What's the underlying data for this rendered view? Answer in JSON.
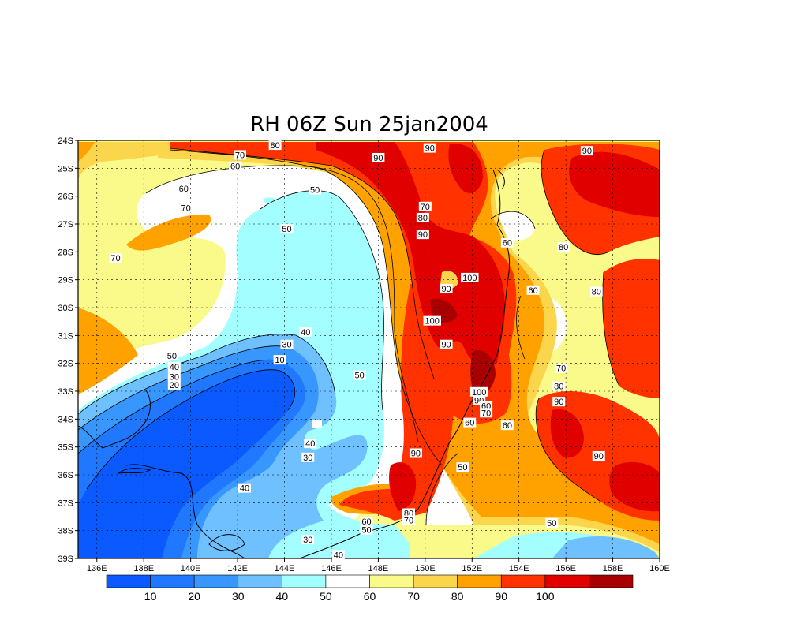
{
  "title": "RH 06Z Sun 25jan2004",
  "lat_labels": [
    "24S",
    "25S",
    "26S",
    "27S",
    "28S",
    "29S",
    "30S",
    "31S",
    "32S",
    "33S",
    "34S",
    "35S",
    "36S",
    "37S",
    "38S",
    "39S"
  ],
  "lon_labels": [
    "136E",
    "138E",
    "140E",
    "142E",
    "144E",
    "146E",
    "148E",
    "150E",
    "152E",
    "154E",
    "156E",
    "158E",
    "160E"
  ],
  "colorbar": {
    "bins": [
      "#0a5aff",
      "#1f78ff",
      "#3797ff",
      "#6ec0ff",
      "#a3ffff",
      "#ffffff",
      "#fafa8a",
      "#fbd54b",
      "#ffa200",
      "#ff3200",
      "#e10000",
      "#a80000"
    ],
    "labels": [
      "10",
      "20",
      "30",
      "40",
      "50",
      "60",
      "70",
      "80",
      "90",
      "100"
    ]
  },
  "contour_labels": [
    {
      "text": "80",
      "lon": 143.6,
      "lat": 24.2
    },
    {
      "text": "70",
      "lon": 142.1,
      "lat": 24.55
    },
    {
      "text": "60",
      "lon": 141.9,
      "lat": 24.95
    },
    {
      "text": "90",
      "lon": 148.0,
      "lat": 24.65
    },
    {
      "text": "90",
      "lon": 150.2,
      "lat": 24.3
    },
    {
      "text": "90",
      "lon": 156.9,
      "lat": 24.4
    },
    {
      "text": "60",
      "lon": 139.7,
      "lat": 25.75
    },
    {
      "text": "50",
      "lon": 145.3,
      "lat": 25.8
    },
    {
      "text": "70",
      "lon": 139.8,
      "lat": 26.45
    },
    {
      "text": "70",
      "lon": 150.0,
      "lat": 26.4
    },
    {
      "text": "80",
      "lon": 149.9,
      "lat": 26.8
    },
    {
      "text": "50",
      "lon": 144.1,
      "lat": 27.2
    },
    {
      "text": "90",
      "lon": 149.9,
      "lat": 27.4
    },
    {
      "text": "60",
      "lon": 153.5,
      "lat": 27.7
    },
    {
      "text": "80",
      "lon": 155.9,
      "lat": 27.85
    },
    {
      "text": "70",
      "lon": 136.8,
      "lat": 28.25
    },
    {
      "text": "100",
      "lon": 151.9,
      "lat": 28.95
    },
    {
      "text": "90",
      "lon": 150.9,
      "lat": 29.35
    },
    {
      "text": "60",
      "lon": 154.6,
      "lat": 29.4
    },
    {
      "text": "80",
      "lon": 157.3,
      "lat": 29.45
    },
    {
      "text": "100",
      "lon": 150.3,
      "lat": 30.5
    },
    {
      "text": "40",
      "lon": 144.9,
      "lat": 30.9
    },
    {
      "text": "30",
      "lon": 144.1,
      "lat": 31.35
    },
    {
      "text": "90",
      "lon": 150.9,
      "lat": 31.35
    },
    {
      "text": "50",
      "lon": 139.2,
      "lat": 31.75
    },
    {
      "text": "10",
      "lon": 143.8,
      "lat": 31.9
    },
    {
      "text": "40",
      "lon": 139.3,
      "lat": 32.15
    },
    {
      "text": "70",
      "lon": 155.8,
      "lat": 32.2
    },
    {
      "text": "50",
      "lon": 147.2,
      "lat": 32.45
    },
    {
      "text": "30",
      "lon": 139.3,
      "lat": 32.5
    },
    {
      "text": "20",
      "lon": 139.3,
      "lat": 32.8
    },
    {
      "text": "80",
      "lon": 155.7,
      "lat": 32.85
    },
    {
      "text": "100",
      "lon": 152.3,
      "lat": 33.05
    },
    {
      "text": "90",
      "lon": 152.3,
      "lat": 33.35
    },
    {
      "text": "90",
      "lon": 155.7,
      "lat": 33.4
    },
    {
      "text": "60",
      "lon": 152.6,
      "lat": 33.55
    },
    {
      "text": "70",
      "lon": 152.6,
      "lat": 33.8
    },
    {
      "text": "60",
      "lon": 151.9,
      "lat": 34.15
    },
    {
      "text": "60",
      "lon": 153.5,
      "lat": 34.25
    },
    {
      "text": "40",
      "lon": 145.1,
      "lat": 34.9
    },
    {
      "text": "90",
      "lon": 149.6,
      "lat": 35.25
    },
    {
      "text": "30",
      "lon": 145.0,
      "lat": 35.4
    },
    {
      "text": "90",
      "lon": 157.4,
      "lat": 35.35
    },
    {
      "text": "50",
      "lon": 151.6,
      "lat": 35.75
    },
    {
      "text": "40",
      "lon": 142.3,
      "lat": 36.5
    },
    {
      "text": "80",
      "lon": 149.3,
      "lat": 37.4
    },
    {
      "text": "70",
      "lon": 149.3,
      "lat": 37.65
    },
    {
      "text": "60",
      "lon": 147.5,
      "lat": 37.7
    },
    {
      "text": "50",
      "lon": 147.5,
      "lat": 38.0
    },
    {
      "text": "50",
      "lon": 155.4,
      "lat": 37.75
    },
    {
      "text": "30",
      "lon": 145.0,
      "lat": 38.35
    },
    {
      "text": "40",
      "lon": 146.3,
      "lat": 38.9
    }
  ]
}
